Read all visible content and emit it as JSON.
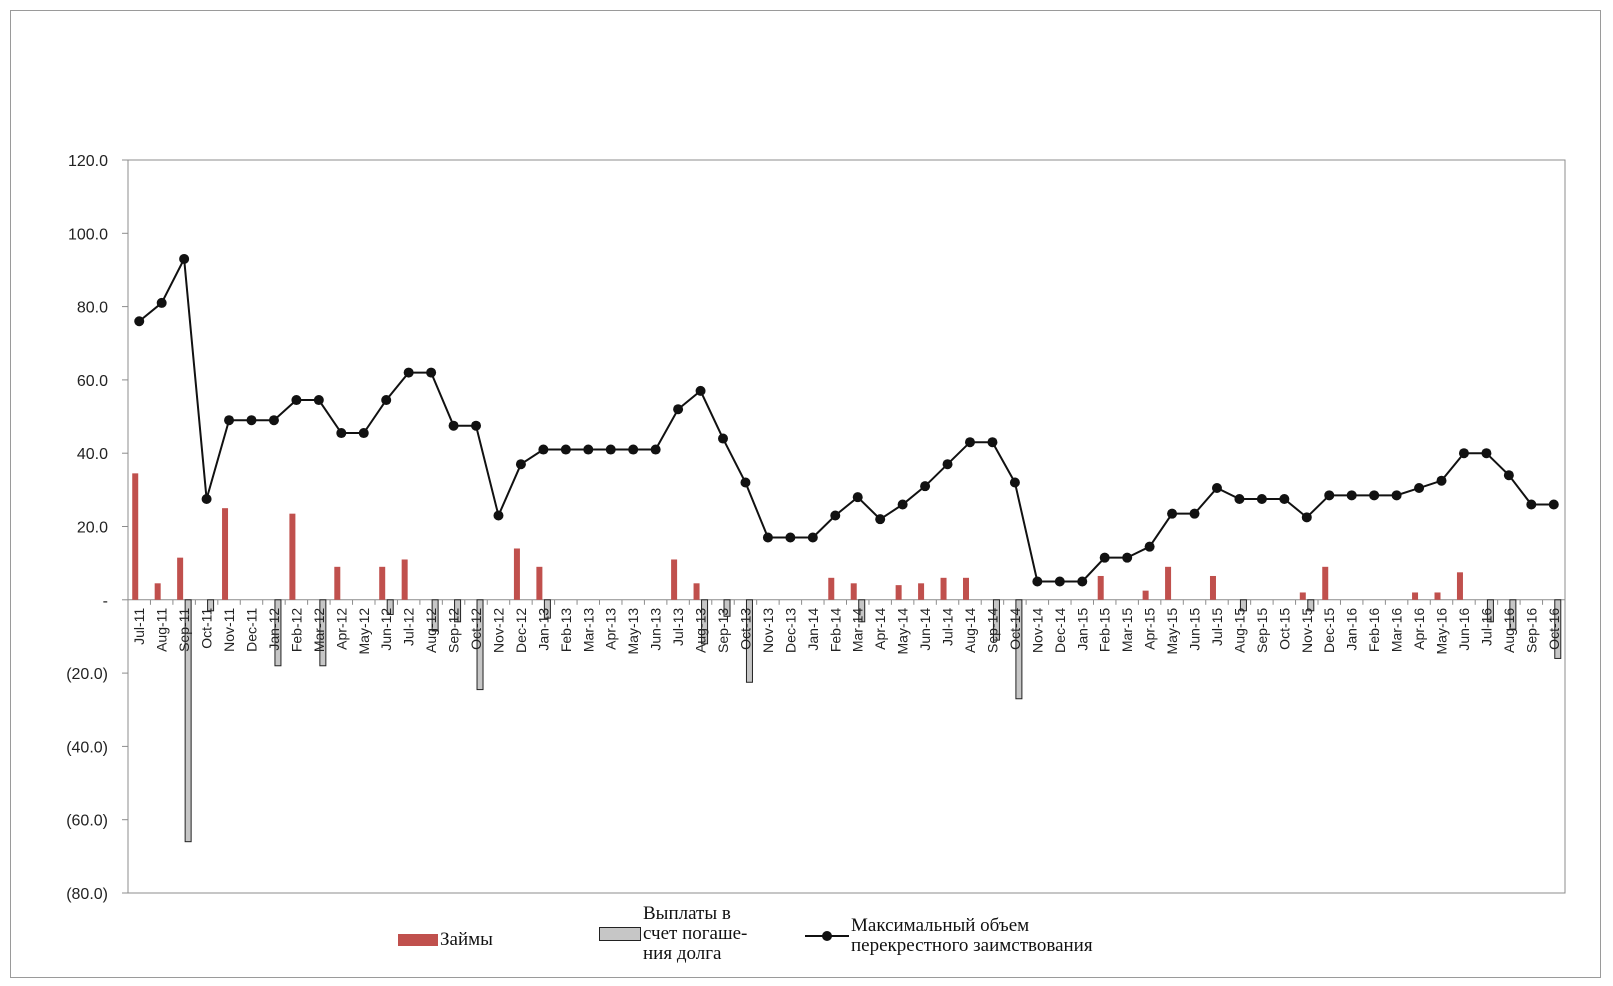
{
  "chart_data": {
    "type": "bar",
    "xlabel": "",
    "ylabel": "",
    "ylim": [
      -80,
      120
    ],
    "yticks": [
      {
        "value": 120,
        "label": "120.0"
      },
      {
        "value": 100,
        "label": "100.0"
      },
      {
        "value": 80,
        "label": "80.0"
      },
      {
        "value": 60,
        "label": "60.0"
      },
      {
        "value": 40,
        "label": "40.0"
      },
      {
        "value": 20,
        "label": "20.0"
      },
      {
        "value": 0,
        "label": "-"
      },
      {
        "value": -20,
        "label": "(20.0)"
      },
      {
        "value": -40,
        "label": "(40.0)"
      },
      {
        "value": -60,
        "label": "(60.0)"
      },
      {
        "value": -80,
        "label": "(80.0)"
      }
    ],
    "categories": [
      "Jul-11",
      "Aug-11",
      "Sep-11",
      "Oct-11",
      "Nov-11",
      "Dec-11",
      "Jan-12",
      "Feb-12",
      "Mar-12",
      "Apr-12",
      "May-12",
      "Jun-12",
      "Jul-12",
      "Aug-12",
      "Sep-12",
      "Oct-12",
      "Nov-12",
      "Dec-12",
      "Jan-13",
      "Feb-13",
      "Mar-13",
      "Apr-13",
      "May-13",
      "Jun-13",
      "Jul-13",
      "Aug-13",
      "Sep-13",
      "Oct-13",
      "Nov-13",
      "Dec-13",
      "Jan-14",
      "Feb-14",
      "Mar-14",
      "Apr-14",
      "May-14",
      "Jun-14",
      "Jul-14",
      "Aug-14",
      "Sep-14",
      "Oct-14",
      "Nov-14",
      "Dec-14",
      "Jan-15",
      "Feb-15",
      "Mar-15",
      "Apr-15",
      "May-15",
      "Jun-15",
      "Jul-15",
      "Aug-15",
      "Sep-15",
      "Oct-15",
      "Nov-15",
      "Dec-15",
      "Jan-16",
      "Feb-16",
      "Mar-16",
      "Apr-16",
      "May-16",
      "Jun-16",
      "Jul-16",
      "Aug-16",
      "Sep-16",
      "Oct-16"
    ],
    "series": [
      {
        "name": "Займы",
        "type": "bar",
        "color": "#c0504d",
        "values": [
          34.5,
          4.5,
          11.5,
          0,
          25,
          0,
          0,
          23.5,
          0,
          9,
          0,
          9,
          11,
          0,
          0,
          0,
          0,
          14,
          9,
          0,
          0,
          0,
          0,
          0,
          11,
          4.5,
          0,
          0,
          0,
          0,
          0,
          6,
          4.5,
          0,
          4,
          4.5,
          6,
          6,
          0,
          0,
          0,
          0,
          0,
          6.5,
          0,
          2.5,
          9,
          0,
          6.5,
          0,
          0,
          0,
          2,
          9,
          0,
          0,
          0,
          2,
          2,
          7.5,
          0,
          0,
          0,
          0
        ]
      },
      {
        "name": "Выплаты в\nсчет погаше-\nния долга",
        "type": "bar",
        "color": "#c6c6c6",
        "values": [
          0,
          0,
          -66,
          -3,
          0,
          0,
          -18,
          0,
          -18,
          0,
          0,
          -4,
          0,
          -8.5,
          -6,
          -24.5,
          0,
          0,
          -5,
          0,
          0,
          0,
          0,
          0,
          0,
          -12,
          -4.5,
          -22.5,
          0,
          0,
          0,
          0,
          -6,
          0,
          0,
          0,
          0,
          0,
          -11,
          -27,
          0,
          0,
          0,
          0,
          0,
          0,
          0,
          0,
          0,
          -3,
          0,
          0,
          -3,
          0,
          0,
          0,
          0,
          0,
          0,
          0,
          -6,
          -8,
          0,
          -16
        ]
      },
      {
        "name": "Максимальный объем\nперекрестного заимствования",
        "type": "line",
        "color": "#111111",
        "values": [
          76,
          81,
          93,
          27.5,
          49,
          49,
          49,
          54.5,
          54.5,
          45.5,
          45.5,
          54.5,
          62,
          62,
          47.5,
          47.5,
          23,
          37,
          41,
          41,
          41,
          41,
          41,
          41,
          52,
          57,
          44,
          32,
          17,
          17,
          17,
          23,
          28,
          22,
          26,
          31,
          37,
          43,
          43,
          32,
          5,
          5,
          5,
          11.5,
          11.5,
          14.5,
          23.5,
          23.5,
          30.5,
          27.5,
          27.5,
          27.5,
          22.5,
          28.5,
          28.5,
          28.5,
          28.5,
          30.5,
          32.5,
          40,
          40,
          34,
          26,
          26
        ]
      }
    ],
    "grid": false,
    "legend_position": "bottom"
  }
}
